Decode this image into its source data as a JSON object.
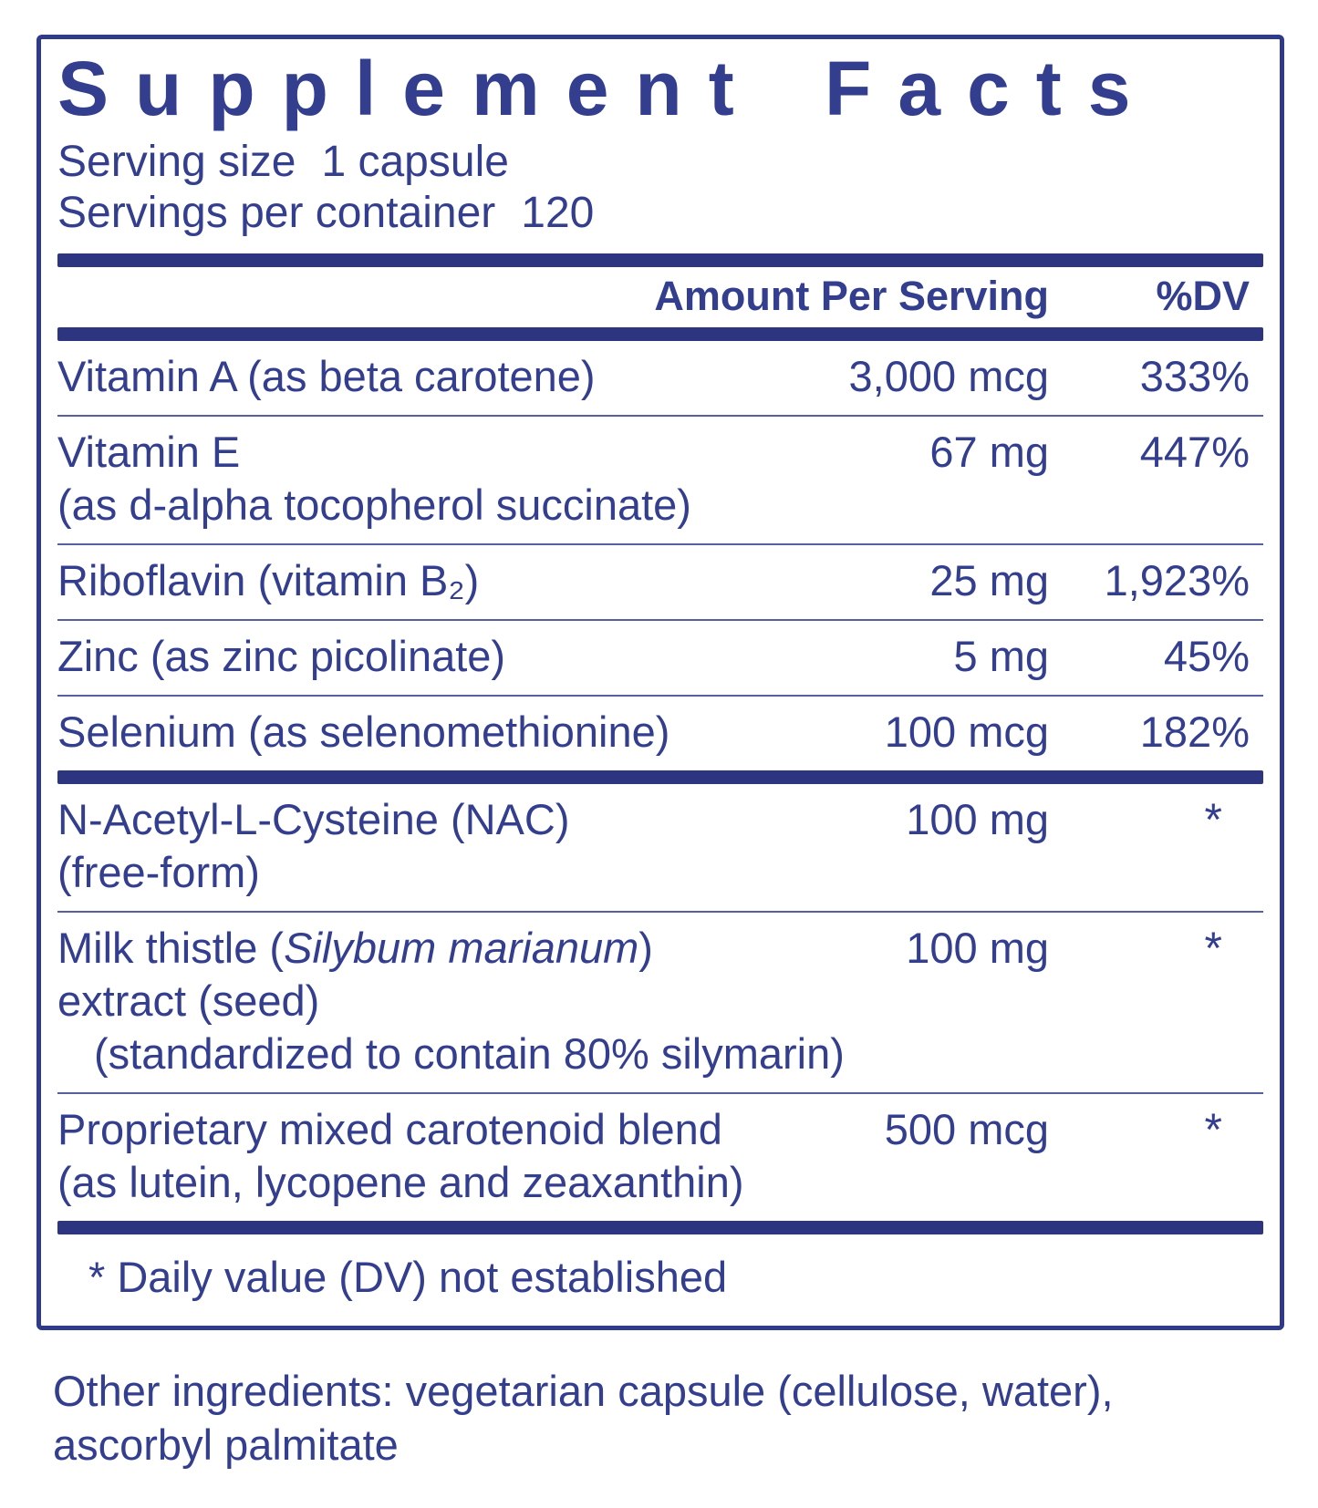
{
  "label": {
    "title": "Supplement Facts",
    "serving_size_label": "Serving size",
    "serving_size_value": "1 capsule",
    "servings_per_container_label": "Servings per container",
    "servings_per_container_value": "120",
    "columns": {
      "amount": "Amount Per Serving",
      "dv": "%DV"
    },
    "rows": [
      {
        "name": "Vitamin A (as beta carotene)",
        "amount": "3,000 mcg",
        "dv": "333%"
      },
      {
        "name": "Vitamin E",
        "name2": "(as d-alpha tocopherol succinate)",
        "amount": "67 mg",
        "dv": "447%"
      },
      {
        "name": "Riboflavin (vitamin B₂)",
        "amount": "25 mg",
        "dv": "1,923%"
      },
      {
        "name": "Zinc (as zinc picolinate)",
        "amount": "5 mg",
        "dv": "45%"
      },
      {
        "name": "Selenium (as selenomethionine)",
        "amount": "100 mcg",
        "dv": "182%"
      },
      {
        "name": "N-Acetyl-L-Cysteine (NAC)",
        "name2": "(free-form)",
        "amount": "100 mg",
        "dv": "*"
      },
      {
        "name_pre": "Milk thistle (",
        "name_italic": "Silybum marianum",
        "name_post": ")",
        "name2": "extract (seed)",
        "name3": "(standardized to contain 80% silymarin)",
        "amount": "100 mg",
        "dv": "*"
      },
      {
        "name": "Proprietary mixed carotenoid blend",
        "name2": "(as lutein, lycopene and zeaxanthin)",
        "amount": "500 mcg",
        "dv": "*"
      }
    ],
    "footnote": "* Daily value (DV) not established",
    "other_ingredients": "Other ingredients: vegetarian capsule (cellulose, water), ascorbyl palmitate",
    "colors": {
      "navy_text": "#333e8f",
      "navy_bar": "#2d3480"
    }
  }
}
